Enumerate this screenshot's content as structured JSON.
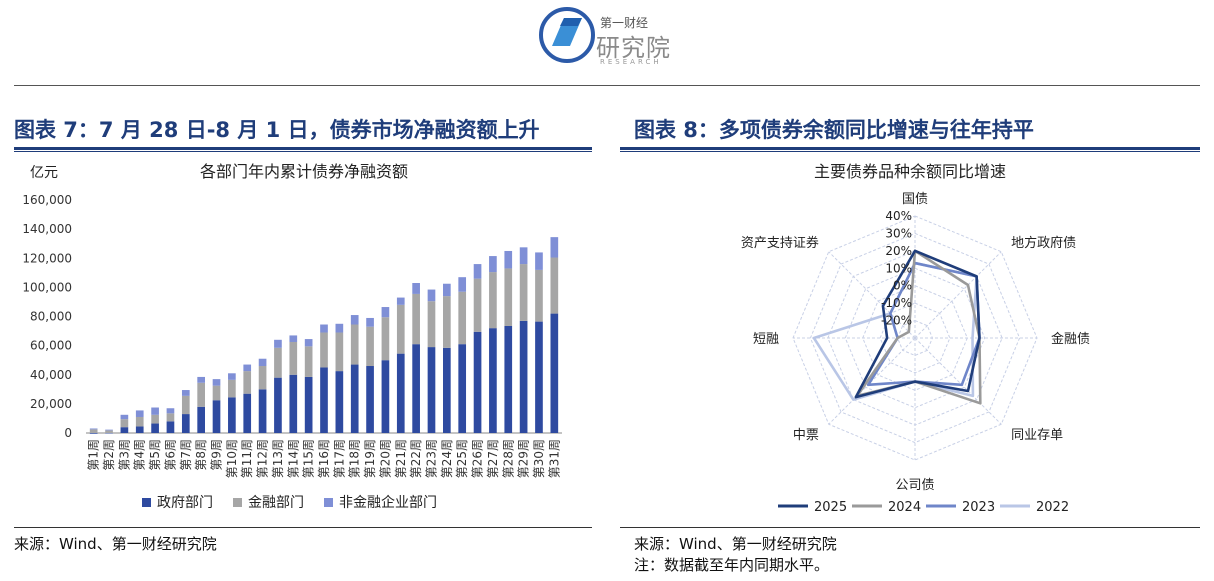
{
  "header": {
    "logo_small": "第一财经",
    "logo_big": "研究院",
    "logo_sub": "RESEARCH"
  },
  "left_panel": {
    "title": "图表 7：7 月 28 日-8 月 1 日，债券市场净融资额上升",
    "source": "来源：Wind、第一财经研究院"
  },
  "right_panel": {
    "title": "图表 8：多项债券余额同比增速与往年持平",
    "source": "来源：Wind、第一财经研究院",
    "note": "注：数据截至年内同期水平。"
  },
  "chart_data": [
    {
      "type": "bar",
      "stacked": true,
      "title": "各部门年内累计债券净融资额",
      "ylabel": "亿元",
      "ylim": [
        0,
        160000
      ],
      "yticks": [
        "0",
        "20,000",
        "40,000",
        "60,000",
        "80,000",
        "100,000",
        "120,000",
        "140,000",
        "160,000"
      ],
      "ytick_values": [
        0,
        20000,
        40000,
        60000,
        80000,
        100000,
        120000,
        140000,
        160000
      ],
      "categories": [
        "第1周",
        "第2周",
        "第3周",
        "第4周",
        "第5周",
        "第6周",
        "第7周",
        "第8周",
        "第9周",
        "第10周",
        "第11周",
        "第12周",
        "第13周",
        "第14周",
        "第15周",
        "第16周",
        "第17周",
        "第18周",
        "第19周",
        "第20周",
        "第21周",
        "第22周",
        "第23周",
        "第24周",
        "第25周",
        "第26周",
        "第27周",
        "第28周",
        "第29周",
        "第30周",
        "第31周"
      ],
      "series": [
        {
          "name": "政府部门",
          "color": "#2e4aa0",
          "values": [
            -500,
            -300,
            4000,
            4500,
            6500,
            8000,
            13000,
            18000,
            22500,
            24500,
            27000,
            30000,
            38000,
            40000,
            38500,
            45000,
            42500,
            47000,
            46000,
            50000,
            54500,
            61000,
            59000,
            58500,
            61000,
            69500,
            72000,
            73500,
            77000,
            76500,
            82000
          ]
        },
        {
          "name": "金融部门",
          "color": "#a6a6a6",
          "values": [
            2500,
            1800,
            5500,
            6500,
            6000,
            5500,
            12500,
            16500,
            10000,
            12000,
            15500,
            16000,
            20500,
            22500,
            21000,
            24000,
            26500,
            27500,
            27000,
            29500,
            33500,
            34500,
            31500,
            35500,
            36000,
            36500,
            38500,
            39500,
            39000,
            35500,
            38500
          ]
        },
        {
          "name": "非金融企业部门",
          "color": "#7f8fd6",
          "values": [
            600,
            500,
            3000,
            4500,
            5000,
            3500,
            4000,
            4000,
            4500,
            4500,
            4500,
            5000,
            5500,
            4500,
            5000,
            5500,
            6000,
            6500,
            6000,
            7000,
            5000,
            7500,
            8000,
            8500,
            10000,
            10000,
            11000,
            12000,
            11500,
            12000,
            14000
          ]
        }
      ]
    },
    {
      "type": "radar",
      "title": "主要债券品种余额同比增速",
      "axes": [
        "国债",
        "地方政府债",
        "金融债",
        "同业存单",
        "公司债",
        "中票",
        "短融",
        "资产支持证券"
      ],
      "rlim": [
        -30,
        40
      ],
      "rticks": [
        "-20%",
        "-10%",
        "0%",
        "10%",
        "20%",
        "30%",
        "40%"
      ],
      "rtick_values": [
        -20,
        -10,
        0,
        10,
        20,
        30,
        40
      ],
      "series": [
        {
          "name": "2025",
          "color": "#1f3d7a",
          "values": [
            20,
            20,
            7,
            13,
            -5,
            18,
            -14,
            -4
          ]
        },
        {
          "name": "2024",
          "color": "#9a9a9a",
          "values": [
            20,
            13,
            7,
            23,
            -5,
            17,
            -20,
            -25
          ]
        },
        {
          "name": "2023",
          "color": "#6f86c9",
          "values": [
            13,
            20,
            7,
            8,
            -5,
            8,
            -20,
            -10
          ]
        },
        {
          "name": "2022",
          "color": "#b9c6e6",
          "values": [
            13,
            20,
            3,
            17,
            -5,
            20,
            28,
            -10
          ]
        }
      ]
    }
  ]
}
